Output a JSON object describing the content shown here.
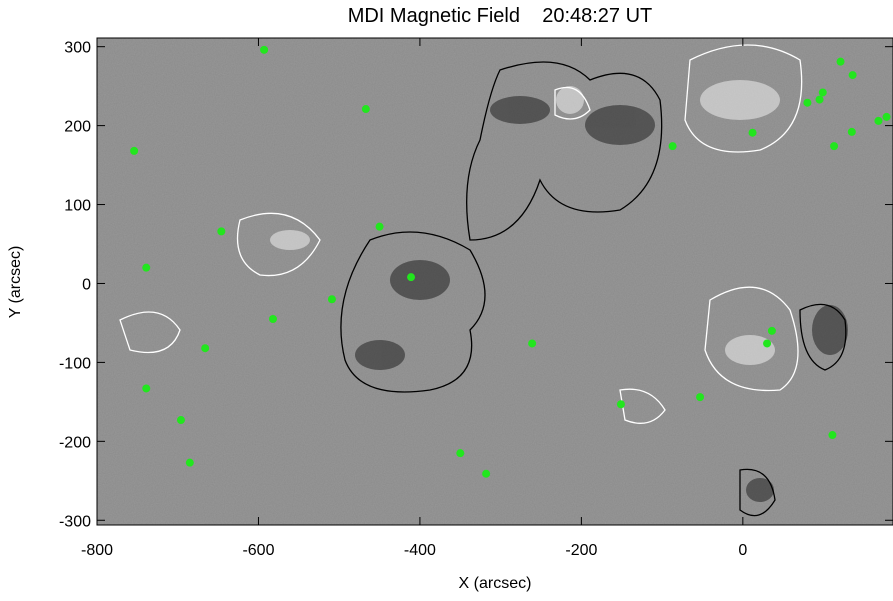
{
  "chart_data": {
    "type": "scatter",
    "title": "MDI Magnetic Field    20:48:27 UT",
    "x_label": "X (arcsec)",
    "y_label": "Y (arcsec)",
    "color": "#22e61e",
    "xlim": [
      -800,
      186
    ],
    "ylim": [
      -306,
      311
    ],
    "xticks": [
      -800,
      -600,
      -400,
      -200,
      0
    ],
    "yticks": [
      -300,
      -200,
      -100,
      0,
      100,
      200,
      300
    ],
    "x": [
      -593,
      -467,
      -754,
      -646,
      -450,
      -739,
      -411,
      -509,
      -582,
      -666,
      -261,
      -739,
      -696,
      -685,
      -350,
      -318,
      -151,
      -53,
      -87,
      12,
      80,
      95,
      99,
      121,
      136,
      135,
      113,
      168,
      178,
      36,
      30,
      111
    ],
    "values": [
      296,
      221,
      168,
      66,
      72,
      20,
      8,
      -20,
      -45,
      -82,
      -76,
      -133,
      -173,
      -227,
      -215,
      -241,
      -153,
      -144,
      174,
      191,
      229,
      233,
      242,
      281,
      264,
      192,
      174,
      206,
      211,
      -60,
      -76,
      -192
    ]
  }
}
